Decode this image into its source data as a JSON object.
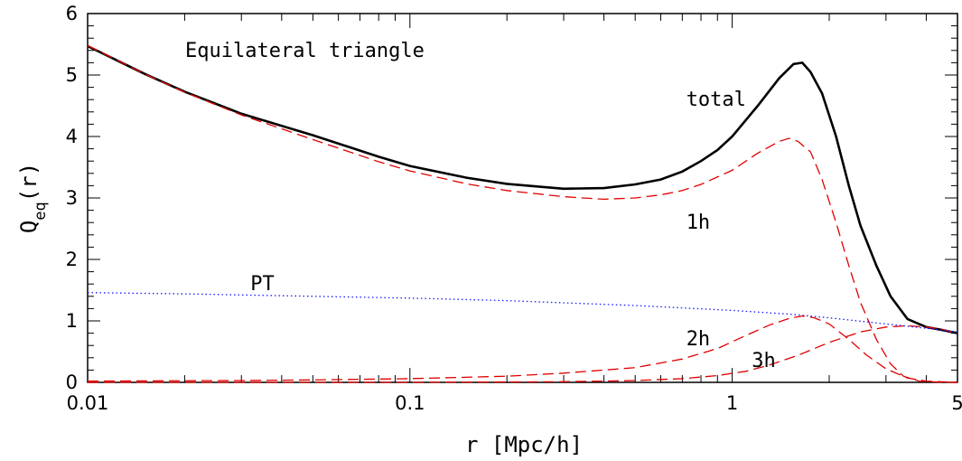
{
  "chart_data": {
    "type": "line",
    "title": "Equilateral triangle",
    "xlabel": "r [Mpc/h]",
    "ylabel": {
      "main": "Q",
      "sub": "eq",
      "tail": "(r)"
    },
    "xscale": "log",
    "xlim": [
      0.01,
      5
    ],
    "ylim": [
      0,
      6
    ],
    "x_tick_labels": [
      {
        "value": 0.01,
        "label": "0.01"
      },
      {
        "value": 0.1,
        "label": "0.1"
      },
      {
        "value": 1,
        "label": "1"
      },
      {
        "value": 5,
        "label": "5"
      }
    ],
    "y_ticks": [
      0,
      1,
      2,
      3,
      4,
      5,
      6
    ],
    "grid": false,
    "series": [
      {
        "name": "total",
        "style": "solid",
        "color": "#000000",
        "points": [
          [
            0.01,
            5.47
          ],
          [
            0.015,
            5.02
          ],
          [
            0.02,
            4.73
          ],
          [
            0.03,
            4.37
          ],
          [
            0.05,
            4.02
          ],
          [
            0.08,
            3.67
          ],
          [
            0.1,
            3.52
          ],
          [
            0.15,
            3.33
          ],
          [
            0.2,
            3.23
          ],
          [
            0.3,
            3.15
          ],
          [
            0.4,
            3.16
          ],
          [
            0.5,
            3.22
          ],
          [
            0.6,
            3.3
          ],
          [
            0.7,
            3.43
          ],
          [
            0.8,
            3.6
          ],
          [
            0.9,
            3.78
          ],
          [
            1.0,
            4.0
          ],
          [
            1.2,
            4.5
          ],
          [
            1.4,
            4.95
          ],
          [
            1.55,
            5.18
          ],
          [
            1.65,
            5.2
          ],
          [
            1.75,
            5.05
          ],
          [
            1.9,
            4.7
          ],
          [
            2.1,
            4.0
          ],
          [
            2.3,
            3.2
          ],
          [
            2.5,
            2.55
          ],
          [
            2.8,
            1.9
          ],
          [
            3.1,
            1.4
          ],
          [
            3.5,
            1.03
          ],
          [
            4.0,
            0.9
          ],
          [
            4.5,
            0.85
          ],
          [
            5.0,
            0.8
          ]
        ]
      },
      {
        "name": "1h",
        "style": "dashed",
        "color": "#e00000",
        "points": [
          [
            0.01,
            5.48
          ],
          [
            0.015,
            5.02
          ],
          [
            0.02,
            4.72
          ],
          [
            0.03,
            4.35
          ],
          [
            0.05,
            3.95
          ],
          [
            0.08,
            3.59
          ],
          [
            0.1,
            3.44
          ],
          [
            0.15,
            3.23
          ],
          [
            0.2,
            3.12
          ],
          [
            0.3,
            3.02
          ],
          [
            0.4,
            2.98
          ],
          [
            0.5,
            3.0
          ],
          [
            0.6,
            3.05
          ],
          [
            0.7,
            3.12
          ],
          [
            0.8,
            3.22
          ],
          [
            1.0,
            3.45
          ],
          [
            1.2,
            3.73
          ],
          [
            1.4,
            3.92
          ],
          [
            1.5,
            3.97
          ],
          [
            1.6,
            3.92
          ],
          [
            1.75,
            3.75
          ],
          [
            1.9,
            3.3
          ],
          [
            2.1,
            2.6
          ],
          [
            2.3,
            1.9
          ],
          [
            2.5,
            1.3
          ],
          [
            2.8,
            0.7
          ],
          [
            3.1,
            0.3
          ],
          [
            3.4,
            0.1
          ],
          [
            3.8,
            0.02
          ],
          [
            4.5,
            0.0
          ],
          [
            5.0,
            0.0
          ]
        ]
      },
      {
        "name": "2h",
        "style": "dashed",
        "color": "#e00000",
        "points": [
          [
            0.01,
            0.02
          ],
          [
            0.03,
            0.03
          ],
          [
            0.05,
            0.04
          ],
          [
            0.1,
            0.06
          ],
          [
            0.2,
            0.1
          ],
          [
            0.3,
            0.15
          ],
          [
            0.5,
            0.24
          ],
          [
            0.7,
            0.38
          ],
          [
            0.9,
            0.55
          ],
          [
            1.1,
            0.76
          ],
          [
            1.3,
            0.93
          ],
          [
            1.5,
            1.04
          ],
          [
            1.65,
            1.08
          ],
          [
            1.8,
            1.05
          ],
          [
            2.0,
            0.95
          ],
          [
            2.3,
            0.7
          ],
          [
            2.6,
            0.45
          ],
          [
            3.0,
            0.22
          ],
          [
            3.5,
            0.07
          ],
          [
            4.0,
            0.02
          ],
          [
            5.0,
            0.0
          ]
        ]
      },
      {
        "name": "3h",
        "style": "dashed",
        "color": "#e00000",
        "points": [
          [
            0.01,
            0.0
          ],
          [
            0.1,
            0.0
          ],
          [
            0.3,
            0.01
          ],
          [
            0.5,
            0.03
          ],
          [
            0.7,
            0.06
          ],
          [
            0.9,
            0.11
          ],
          [
            1.1,
            0.18
          ],
          [
            1.3,
            0.28
          ],
          [
            1.6,
            0.44
          ],
          [
            2.0,
            0.65
          ],
          [
            2.5,
            0.82
          ],
          [
            3.0,
            0.9
          ],
          [
            3.5,
            0.92
          ],
          [
            4.0,
            0.9
          ],
          [
            4.5,
            0.86
          ],
          [
            5.0,
            0.8
          ]
        ]
      },
      {
        "name": "PT",
        "style": "dotted",
        "color": "#1a1aff",
        "points": [
          [
            0.01,
            1.46
          ],
          [
            0.02,
            1.44
          ],
          [
            0.05,
            1.4
          ],
          [
            0.1,
            1.37
          ],
          [
            0.2,
            1.33
          ],
          [
            0.5,
            1.25
          ],
          [
            1.0,
            1.17
          ],
          [
            1.5,
            1.11
          ],
          [
            2.0,
            1.05
          ],
          [
            3.0,
            0.95
          ],
          [
            4.0,
            0.88
          ],
          [
            5.0,
            0.82
          ]
        ]
      }
    ],
    "annotations": [
      {
        "text": "total",
        "x": 0.72,
        "y": 4.5
      },
      {
        "text": "1h",
        "x": 0.72,
        "y": 2.5
      },
      {
        "text": "2h",
        "x": 0.72,
        "y": 0.6
      },
      {
        "text": "3h",
        "x": 1.15,
        "y": 0.25
      },
      {
        "text": "PT",
        "x": 0.032,
        "y": 1.5
      }
    ]
  }
}
